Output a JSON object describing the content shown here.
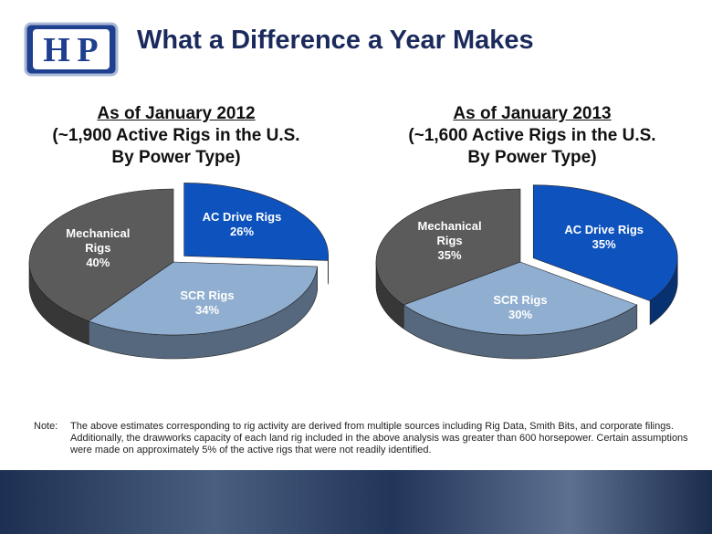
{
  "slide_title": "What a Difference a Year Makes",
  "logo": [
    "H",
    "P"
  ],
  "chart_data": [
    {
      "type": "pie",
      "title": "As of January 2012",
      "subtitle": [
        "(~1,900 Active Rigs in the U.S.",
        "By Power Type)"
      ],
      "categories": [
        "AC Drive Rigs",
        "SCR Rigs",
        "Mechanical Rigs"
      ],
      "values": [
        26,
        34,
        40
      ],
      "value_labels": [
        "26%",
        "34%",
        "40%"
      ],
      "colors": [
        "#0d52bd",
        "#90aed0",
        "#5b5b5b"
      ]
    },
    {
      "type": "pie",
      "title": "As of January 2013",
      "subtitle": [
        "(~1,600 Active Rigs in the U.S.",
        "By Power Type)"
      ],
      "categories": [
        "AC Drive Rigs",
        "SCR Rigs",
        "Mechanical Rigs"
      ],
      "values": [
        35,
        30,
        35
      ],
      "value_labels": [
        "35%",
        "30%",
        "35%"
      ],
      "colors": [
        "#0d52bd",
        "#90aed0",
        "#5b5b5b"
      ]
    }
  ],
  "note": {
    "label": "Note:",
    "text": "The above estimates corresponding to rig activity are derived from multiple sources including Rig Data, Smith Bits, and corporate filings.  Additionally, the drawworks capacity of each land rig included in the above analysis was greater than 600 horsepower.  Certain assumptions were made on approximately 5% of the active rigs that were not readily identified."
  }
}
